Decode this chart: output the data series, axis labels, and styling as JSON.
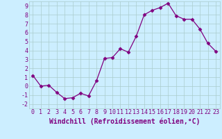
{
  "x": [
    0,
    1,
    2,
    3,
    4,
    5,
    6,
    7,
    8,
    9,
    10,
    11,
    12,
    13,
    14,
    15,
    16,
    17,
    18,
    19,
    20,
    21,
    22,
    23
  ],
  "y": [
    1.2,
    0.0,
    0.1,
    -0.7,
    -1.4,
    -1.3,
    -0.8,
    -1.1,
    0.6,
    3.1,
    3.2,
    4.2,
    3.8,
    5.6,
    8.0,
    8.5,
    8.8,
    9.3,
    7.9,
    7.5,
    7.5,
    6.4,
    4.8,
    3.9
  ],
  "line_color": "#800080",
  "marker": "D",
  "marker_size": 2.5,
  "bg_color": "#cceeff",
  "grid_color": "#aacccc",
  "xlabel": "Windchill (Refroidissement éolien,°C)",
  "xlim": [
    -0.5,
    23.5
  ],
  "ylim": [
    -2.5,
    9.5
  ],
  "yticks": [
    -2,
    -1,
    0,
    1,
    2,
    3,
    4,
    5,
    6,
    7,
    8,
    9
  ],
  "xticks": [
    0,
    1,
    2,
    3,
    4,
    5,
    6,
    7,
    8,
    9,
    10,
    11,
    12,
    13,
    14,
    15,
    16,
    17,
    18,
    19,
    20,
    21,
    22,
    23
  ],
  "tick_color": "#800080",
  "label_fontsize": 7,
  "tick_fontsize": 6,
  "font_family": "monospace"
}
